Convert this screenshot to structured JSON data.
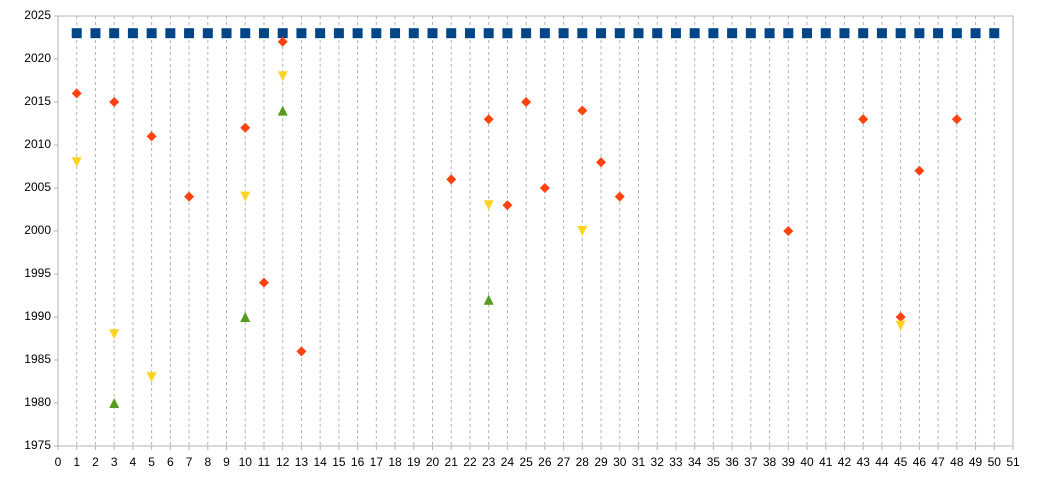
{
  "chart_data": {
    "type": "scatter",
    "xlim": [
      0,
      51
    ],
    "ylim": [
      1975,
      2025
    ],
    "xticks": [
      0,
      1,
      2,
      3,
      4,
      5,
      6,
      7,
      8,
      9,
      10,
      11,
      12,
      13,
      14,
      15,
      16,
      17,
      18,
      19,
      20,
      21,
      22,
      23,
      24,
      25,
      26,
      27,
      28,
      29,
      30,
      31,
      32,
      33,
      34,
      35,
      36,
      37,
      38,
      39,
      40,
      41,
      42,
      43,
      44,
      45,
      46,
      47,
      48,
      49,
      50,
      51
    ],
    "yticks": [
      1975,
      1980,
      1985,
      1990,
      1995,
      2000,
      2005,
      2010,
      2015,
      2020,
      2025
    ],
    "grid": "x-dashed",
    "series": [
      {
        "marker": "square",
        "color": "#004586",
        "x": [
          1,
          2,
          3,
          4,
          5,
          6,
          7,
          8,
          9,
          10,
          11,
          12,
          13,
          14,
          15,
          16,
          17,
          18,
          19,
          20,
          21,
          22,
          23,
          24,
          25,
          26,
          27,
          28,
          29,
          30,
          31,
          32,
          33,
          34,
          35,
          36,
          37,
          38,
          39,
          40,
          41,
          42,
          43,
          44,
          45,
          46,
          47,
          48,
          49,
          50
        ],
        "y": [
          2023,
          2023,
          2023,
          2023,
          2023,
          2023,
          2023,
          2023,
          2023,
          2023,
          2023,
          2023,
          2023,
          2023,
          2023,
          2023,
          2023,
          2023,
          2023,
          2023,
          2023,
          2023,
          2023,
          2023,
          2023,
          2023,
          2023,
          2023,
          2023,
          2023,
          2023,
          2023,
          2023,
          2023,
          2023,
          2023,
          2023,
          2023,
          2023,
          2023,
          2023,
          2023,
          2023,
          2023,
          2023,
          2023,
          2023,
          2023,
          2023,
          2023
        ]
      },
      {
        "marker": "diamond",
        "color": "#ff420e",
        "x": [
          1,
          3,
          5,
          7,
          10,
          11,
          12,
          13,
          21,
          23,
          24,
          25,
          26,
          28,
          29,
          30,
          39,
          43,
          45,
          46,
          48
        ],
        "y": [
          2016,
          2015,
          2011,
          2004,
          2012,
          1994,
          2022,
          1986,
          2006,
          2013,
          2003,
          2015,
          2005,
          2014,
          2008,
          2004,
          2000,
          2013,
          1990,
          2007,
          2013
        ]
      },
      {
        "marker": "triangle-down",
        "color": "#ffd320",
        "x": [
          1,
          3,
          5,
          10,
          12,
          23,
          28,
          45
        ],
        "y": [
          2008,
          1988,
          1983,
          2004,
          2018,
          2003,
          2000,
          1989
        ]
      },
      {
        "marker": "triangle-up",
        "color": "#579d1c",
        "x": [
          3,
          10,
          12,
          23
        ],
        "y": [
          1980,
          1990,
          2014,
          1992
        ]
      }
    ]
  }
}
